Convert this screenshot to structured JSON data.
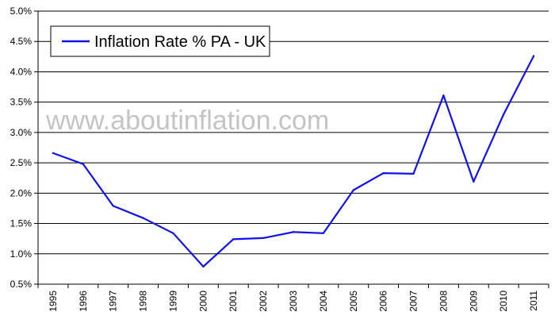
{
  "chart_data": {
    "type": "line",
    "categories": [
      "1995",
      "1996",
      "1997",
      "1998",
      "1999",
      "2000",
      "2001",
      "2002",
      "2003",
      "2004",
      "2005",
      "2006",
      "2007",
      "2008",
      "2009",
      "2010",
      "2011"
    ],
    "series": [
      {
        "name": "Inflation Rate % PA - UK",
        "color": "#1111ee",
        "values": [
          2.66,
          2.48,
          1.79,
          1.59,
          1.34,
          0.79,
          1.24,
          1.26,
          1.36,
          1.34,
          2.05,
          2.33,
          2.32,
          3.61,
          2.19,
          3.3,
          4.26
        ]
      }
    ],
    "ylim": [
      0.5,
      5.0
    ],
    "yticks": [
      0.5,
      1.0,
      1.5,
      2.0,
      2.5,
      3.0,
      3.5,
      4.0,
      4.5,
      5.0
    ],
    "ytick_labels": [
      "0.5%",
      "1.0%",
      "1.5%",
      "2.0%",
      "2.5%",
      "3.0%",
      "3.5%",
      "4.0%",
      "4.5%",
      "5.0%"
    ],
    "grid": true,
    "legend_position": "top-left",
    "watermark": "www.aboutinflation.com"
  }
}
